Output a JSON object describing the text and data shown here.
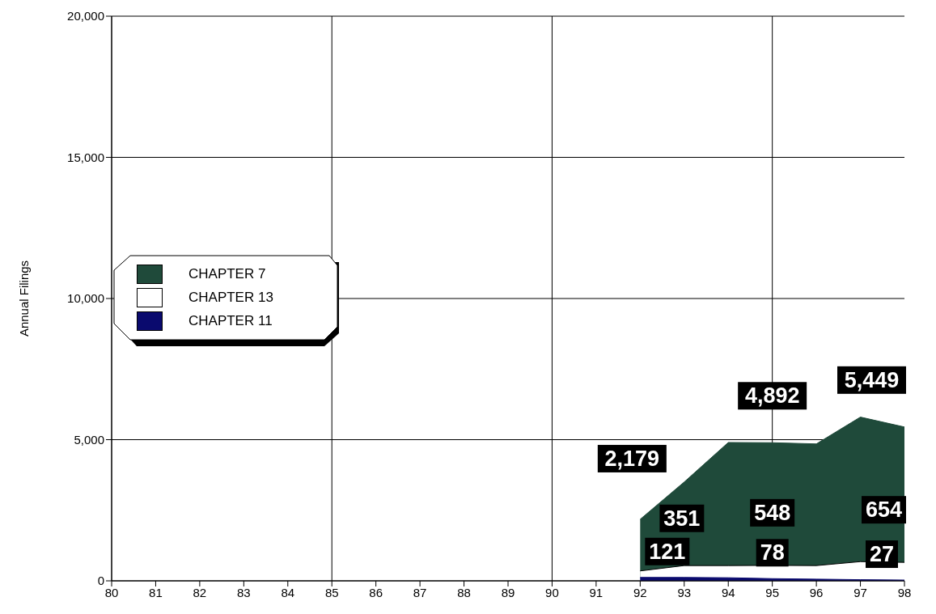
{
  "chart_data": {
    "type": "area",
    "ylabel": "Annual Filings",
    "x": [
      92,
      93,
      94,
      95,
      96,
      97,
      98
    ],
    "series": [
      {
        "name": "CHAPTER 7",
        "color": "#1f4a3a",
        "values": [
          2179,
          3500,
          4900,
          4892,
          4850,
          5800,
          5449
        ],
        "value_labels": [
          "2,179",
          null,
          null,
          "4,892",
          null,
          null,
          "5,449"
        ]
      },
      {
        "name": "CHAPTER 13",
        "color": "#ffffff",
        "values": [
          351,
          540,
          540,
          548,
          540,
          680,
          654
        ],
        "value_labels": [
          "351",
          null,
          null,
          "548",
          null,
          null,
          "654"
        ]
      },
      {
        "name": "CHAPTER 11",
        "color": "#0a0a6e",
        "values": [
          121,
          120,
          110,
          78,
          60,
          40,
          27
        ],
        "value_labels": [
          "121",
          null,
          null,
          "78",
          null,
          null,
          "27"
        ]
      }
    ],
    "xlim": [
      80,
      98
    ],
    "xticks": [
      80,
      81,
      82,
      83,
      84,
      85,
      86,
      87,
      88,
      89,
      90,
      91,
      92,
      93,
      94,
      95,
      96,
      97,
      98
    ],
    "ylim": [
      0,
      20000
    ],
    "yticks": [
      0,
      {
        "value": 5000,
        "label": "5,000"
      },
      {
        "value": 10000,
        "label": "10,000"
      },
      {
        "value": 15000,
        "label": "15,000"
      },
      {
        "value": 20000,
        "label": "20,000"
      }
    ],
    "grid": true,
    "legend": "left"
  }
}
